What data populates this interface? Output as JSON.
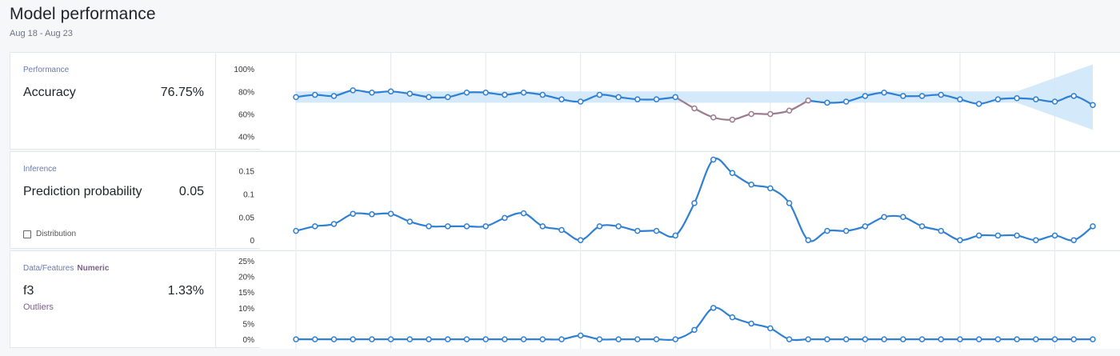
{
  "header": {
    "title": "Model performance",
    "subtitle": "Aug 18 - Aug 23"
  },
  "panels": [
    {
      "category": "Performance",
      "tag": "",
      "metric": "Accuracy",
      "value": "76.75%",
      "sub_label": "",
      "checkbox_label": ""
    },
    {
      "category": "Inference",
      "tag": "",
      "metric": "Prediction probability",
      "value": "0.05",
      "sub_label": "",
      "checkbox_label": "Distribution"
    },
    {
      "category": "Data/Features",
      "tag": "Numeric",
      "metric": "f3",
      "value": "1.33%",
      "sub_label": "Outliers",
      "checkbox_label": ""
    }
  ],
  "colors": {
    "line": "#2f7fd3",
    "anomaly": "#9c7b8f",
    "band": "#cfe7f8",
    "grid": "#e3e6ea",
    "marker_fill": "#ffffff"
  },
  "chart_data": [
    {
      "type": "line",
      "name": "accuracy",
      "y_ticks": [
        "100%",
        "80%",
        "60%",
        "40%"
      ],
      "y_tick_values": [
        100,
        80,
        60,
        40
      ],
      "ylim": [
        32,
        110
      ],
      "confidence_band": true,
      "anomaly_range": [
        21,
        27
      ],
      "values": [
        75,
        77,
        76,
        81,
        79,
        80,
        78,
        75,
        75,
        79,
        79,
        77,
        79,
        77,
        73,
        71,
        77,
        75,
        73,
        73,
        75,
        65,
        57,
        55,
        60,
        60,
        63,
        72,
        70,
        71,
        76,
        79,
        76,
        76,
        77,
        73,
        69,
        73,
        74,
        73,
        71,
        76,
        68
      ]
    },
    {
      "type": "line",
      "name": "prediction-probability",
      "y_ticks": [
        "0.15",
        "0.1",
        "0.05",
        "0"
      ],
      "y_tick_values": [
        0.15,
        0.1,
        0.05,
        0
      ],
      "ylim": [
        -0.01,
        0.18
      ],
      "values": [
        0.02,
        0.03,
        0.035,
        0.057,
        0.056,
        0.057,
        0.04,
        0.03,
        0.03,
        0.03,
        0.03,
        0.048,
        0.058,
        0.03,
        0.022,
        0.0,
        0.03,
        0.03,
        0.02,
        0.02,
        0.01,
        0.08,
        0.174,
        0.145,
        0.12,
        0.112,
        0.08,
        0.0,
        0.02,
        0.02,
        0.03,
        0.05,
        0.05,
        0.03,
        0.02,
        0.0,
        0.01,
        0.01,
        0.01,
        0.0,
        0.01,
        0.0,
        0.03
      ]
    },
    {
      "type": "line",
      "name": "outliers",
      "y_ticks": [
        "25%",
        "20%",
        "15%",
        "10%",
        "5%",
        "0%"
      ],
      "y_tick_values": [
        25,
        20,
        15,
        10,
        5,
        0
      ],
      "ylim": [
        -1.5,
        26.5
      ],
      "values": [
        0,
        0,
        0,
        0,
        0,
        0,
        0,
        0,
        0,
        0,
        0,
        0,
        0,
        0,
        0,
        1.2,
        0,
        0,
        0,
        0,
        0,
        3,
        10,
        7,
        5,
        3.5,
        0,
        0,
        0,
        0,
        0,
        0,
        0,
        0,
        0,
        0,
        0,
        0,
        0,
        0,
        0,
        0,
        0
      ]
    }
  ]
}
